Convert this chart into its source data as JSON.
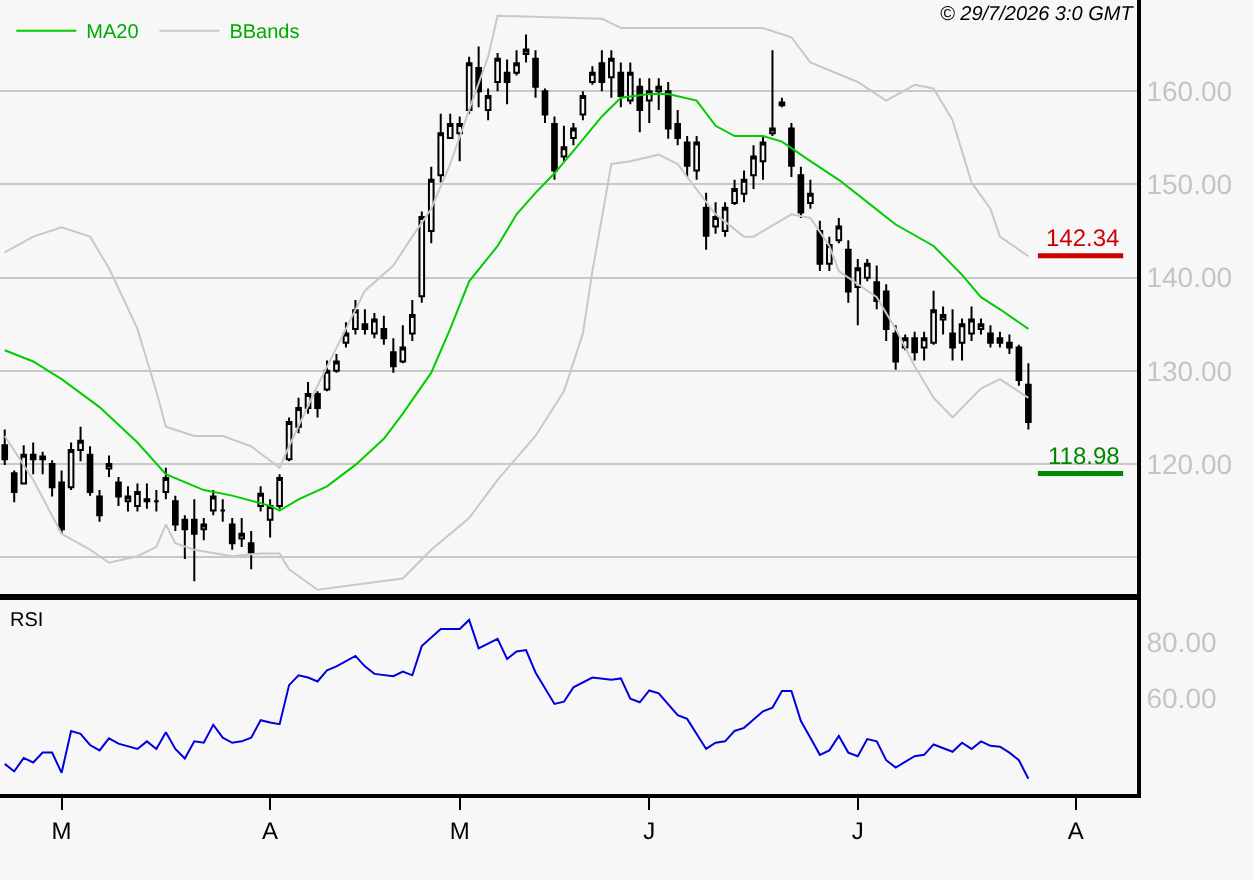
{
  "chart_data": [
    {
      "type": "candlestick",
      "categories": [
        null,
        null,
        null,
        null,
        null,
        null,
        null,
        null,
        null,
        null,
        null,
        null,
        null,
        null,
        null,
        null,
        null,
        null,
        null,
        null,
        null,
        null,
        null,
        null,
        null,
        null,
        null,
        null,
        null,
        null,
        null,
        null,
        null,
        null,
        null,
        null,
        null,
        null,
        null,
        null,
        null,
        null,
        null,
        null,
        null,
        null,
        null,
        null,
        null,
        null,
        null,
        null,
        null,
        null,
        null,
        null,
        null,
        null,
        null,
        null,
        null,
        null,
        null,
        null,
        null,
        null,
        null,
        null,
        null,
        null,
        null,
        null,
        null,
        null,
        null,
        null,
        null,
        null,
        null,
        null,
        null,
        null,
        null,
        null,
        null,
        null,
        null,
        null,
        null,
        null,
        null,
        null,
        null,
        null,
        null,
        null,
        null,
        null,
        null,
        null,
        null,
        null,
        null,
        null,
        null,
        null,
        null,
        null,
        null,
        null,
        null,
        null,
        null,
        null,
        null,
        null,
        null,
        null,
        null,
        null
      ],
      "ohlc": [
        [
          122.0,
          123.7,
          119.9,
          120.5
        ],
        [
          119.0,
          119.3,
          115.9,
          117.0
        ],
        [
          117.9,
          122.0,
          117.9,
          121.0
        ],
        [
          121.0,
          122.3,
          118.9,
          120.5
        ],
        [
          120.5,
          121.3,
          118.9,
          120.8
        ],
        [
          120.0,
          120.4,
          116.5,
          117.5
        ],
        [
          118.0,
          119.3,
          112.5,
          113.0
        ],
        [
          117.5,
          122.3,
          117.2,
          121.5
        ],
        [
          121.5,
          124.0,
          120.3,
          122.5
        ],
        [
          121.0,
          121.9,
          116.6,
          117.0
        ],
        [
          116.5,
          117.2,
          113.8,
          114.5
        ],
        [
          119.5,
          120.9,
          118.6,
          120.0
        ],
        [
          118.0,
          118.6,
          115.5,
          116.5
        ],
        [
          116.0,
          117.6,
          114.9,
          116.5
        ],
        [
          115.5,
          117.9,
          114.9,
          117.0
        ],
        [
          116.0,
          117.9,
          115.2,
          116.2
        ],
        [
          116.0,
          117.2,
          114.9,
          116.0
        ],
        [
          117.0,
          119.6,
          116.2,
          118.5
        ],
        [
          116.0,
          116.6,
          112.8,
          113.5
        ],
        [
          114.0,
          114.5,
          109.8,
          113.0
        ],
        [
          114.0,
          116.2,
          107.4,
          112.5
        ],
        [
          113.0,
          114.2,
          111.8,
          113.5
        ],
        [
          115.0,
          117.2,
          114.5,
          116.5
        ],
        [
          115.0,
          116.2,
          113.8,
          115.0
        ],
        [
          113.5,
          114.2,
          110.8,
          111.5
        ],
        [
          112.0,
          114.2,
          111.1,
          112.5
        ],
        [
          111.5,
          112.8,
          108.7,
          110.5
        ],
        [
          115.5,
          117.6,
          114.9,
          116.8
        ],
        [
          114.0,
          116.2,
          112.1,
          115.5
        ],
        [
          115.5,
          118.9,
          115.2,
          118.5
        ],
        [
          120.5,
          125.0,
          120.3,
          124.5
        ],
        [
          124.0,
          127.1,
          123.3,
          126.0
        ],
        [
          126.0,
          128.8,
          125.4,
          127.5
        ],
        [
          127.5,
          127.8,
          125.0,
          126.0
        ],
        [
          128.0,
          131.1,
          127.8,
          130.0
        ],
        [
          130.0,
          131.8,
          129.8,
          131.0
        ],
        [
          133.0,
          135.2,
          132.5,
          134.0
        ],
        [
          134.5,
          137.6,
          133.9,
          136.5
        ],
        [
          135.0,
          136.6,
          133.9,
          134.5
        ],
        [
          134.0,
          136.2,
          133.5,
          135.5
        ],
        [
          134.5,
          135.9,
          132.8,
          133.5
        ],
        [
          132.0,
          133.5,
          129.8,
          130.5
        ],
        [
          131.0,
          134.9,
          130.8,
          132.5
        ],
        [
          134.0,
          137.6,
          133.2,
          136.0
        ],
        [
          138.0,
          147.1,
          137.3,
          146.5
        ],
        [
          145.0,
          151.9,
          143.7,
          150.5
        ],
        [
          151.0,
          157.6,
          150.2,
          155.5
        ],
        [
          155.0,
          157.6,
          154.9,
          156.5
        ],
        [
          155.5,
          157.3,
          152.5,
          156.5
        ],
        [
          158.0,
          163.7,
          157.6,
          163.0
        ],
        [
          162.5,
          164.8,
          158.3,
          160.0
        ],
        [
          158.0,
          160.3,
          156.9,
          159.5
        ],
        [
          161.0,
          164.1,
          160.0,
          163.5
        ],
        [
          162.0,
          163.4,
          158.6,
          161.0
        ],
        [
          162.0,
          164.4,
          161.7,
          163.0
        ],
        [
          164.0,
          166.1,
          163.1,
          164.5
        ],
        [
          163.5,
          164.4,
          159.3,
          160.5
        ],
        [
          160.0,
          160.3,
          156.6,
          157.5
        ],
        [
          156.5,
          157.3,
          150.5,
          151.5
        ],
        [
          153.0,
          156.3,
          152.5,
          154.0
        ],
        [
          155.0,
          156.6,
          154.2,
          156.0
        ],
        [
          157.5,
          160.0,
          156.9,
          159.5
        ],
        [
          161.0,
          162.7,
          160.7,
          162.0
        ],
        [
          163.0,
          164.4,
          160.0,
          161.0
        ],
        [
          161.5,
          164.4,
          159.3,
          163.5
        ],
        [
          162.0,
          163.1,
          158.3,
          159.5
        ],
        [
          159.0,
          163.1,
          158.6,
          162.0
        ],
        [
          160.5,
          161.4,
          155.6,
          158.0
        ],
        [
          159.0,
          161.4,
          156.6,
          160.0
        ],
        [
          160.0,
          161.4,
          158.0,
          160.5
        ],
        [
          160.0,
          161.0,
          154.9,
          156.0
        ],
        [
          156.5,
          158.0,
          154.2,
          155.0
        ],
        [
          154.5,
          155.2,
          150.8,
          152.0
        ],
        [
          151.5,
          155.2,
          150.5,
          154.5
        ],
        [
          147.5,
          149.1,
          143.0,
          144.5
        ],
        [
          145.5,
          148.1,
          144.7,
          146.5
        ],
        [
          145.0,
          148.1,
          144.4,
          147.5
        ],
        [
          148.0,
          150.5,
          147.8,
          149.5
        ],
        [
          149.0,
          151.5,
          148.1,
          150.5
        ],
        [
          151.0,
          154.2,
          149.5,
          153.0
        ],
        [
          152.5,
          155.2,
          150.5,
          154.5
        ],
        [
          155.5,
          164.4,
          155.2,
          156.0
        ],
        [
          158.5,
          159.3,
          158.3,
          158.8
        ],
        [
          156.0,
          156.6,
          150.8,
          152.0
        ],
        [
          151.0,
          151.9,
          146.4,
          147.0
        ],
        [
          148.0,
          150.5,
          147.4,
          149.0
        ],
        [
          145.0,
          146.1,
          140.7,
          141.5
        ],
        [
          141.5,
          144.4,
          140.7,
          143.5
        ],
        [
          144.0,
          146.4,
          143.7,
          145.5
        ],
        [
          143.0,
          144.0,
          137.3,
          138.5
        ],
        [
          139.0,
          142.0,
          134.9,
          141.0
        ],
        [
          140.0,
          142.0,
          139.6,
          141.5
        ],
        [
          139.5,
          141.3,
          136.6,
          137.5
        ],
        [
          138.5,
          139.3,
          133.2,
          134.5
        ],
        [
          134.0,
          134.9,
          130.1,
          131.0
        ],
        [
          132.5,
          133.9,
          132.2,
          133.5
        ],
        [
          133.5,
          134.2,
          131.1,
          132.0
        ],
        [
          132.5,
          134.2,
          131.1,
          133.5
        ],
        [
          133.0,
          138.6,
          132.8,
          136.5
        ],
        [
          135.5,
          136.9,
          133.9,
          136.0
        ],
        [
          134.0,
          136.6,
          131.1,
          132.5
        ],
        [
          133.0,
          135.6,
          131.1,
          135.0
        ],
        [
          134.0,
          136.9,
          133.2,
          135.5
        ],
        [
          134.5,
          135.6,
          133.9,
          135.0
        ],
        [
          134.0,
          134.9,
          132.5,
          133.0
        ],
        [
          133.5,
          134.2,
          132.5,
          133.0
        ],
        [
          133.0,
          133.9,
          131.8,
          132.5
        ],
        [
          132.5,
          132.8,
          128.4,
          129.0
        ],
        [
          128.5,
          130.8,
          123.7,
          124.5
        ],
        null,
        null,
        null,
        null,
        null,
        null,
        null,
        null,
        null,
        null,
        null
      ],
      "series": [
        {
          "type": "line",
          "name": "MA20",
          "color": "#00cc00",
          "values": [
            132.2,
            null,
            null,
            131.0,
            null,
            null,
            129.1,
            null,
            null,
            null,
            126.1,
            null,
            null,
            null,
            122.3,
            null,
            null,
            118.9,
            null,
            null,
            null,
            117.2,
            null,
            null,
            116.6,
            null,
            null,
            null,
            115.5,
            115.0,
            null,
            116.2,
            null,
            null,
            117.6,
            null,
            null,
            119.9,
            null,
            null,
            122.7,
            null,
            125.4,
            null,
            null,
            129.8,
            null,
            134.5,
            null,
            139.6,
            null,
            null,
            143.4,
            null,
            146.8,
            null,
            149.1,
            null,
            151.2,
            null,
            153.6,
            null,
            null,
            157.3,
            null,
            159.3,
            null,
            null,
            159.7,
            null,
            159.7,
            null,
            null,
            159.0,
            null,
            156.3,
            null,
            155.2,
            null,
            null,
            155.2,
            null,
            154.6,
            null,
            null,
            152.5,
            null,
            null,
            150.5,
            null,
            null,
            148.1,
            null,
            null,
            145.7,
            null,
            null,
            null,
            143.4,
            null,
            null,
            140.3,
            null,
            137.9,
            null,
            136.6,
            null,
            null,
            134.5,
            null,
            null,
            null,
            null,
            null,
            null,
            null,
            null,
            null,
            null,
            null
          ]
        },
        {
          "type": "line",
          "name": "BBands",
          "color": "#c8c8c8",
          "values": [
            142.7,
            null,
            null,
            144.4,
            null,
            null,
            145.4,
            null,
            null,
            144.4,
            null,
            141.0,
            null,
            null,
            134.5,
            null,
            127.8,
            124.0,
            null,
            null,
            123.0,
            null,
            null,
            123.0,
            null,
            null,
            121.9,
            null,
            null,
            119.6,
            121.9,
            null,
            null,
            128.4,
            null,
            null,
            134.5,
            null,
            138.6,
            null,
            null,
            141.3,
            null,
            144.4,
            null,
            147.4,
            null,
            152.2,
            null,
            158.0,
            null,
            163.7,
            168.1,
            null,
            null,
            null,
            null,
            null,
            null,
            null,
            null,
            null,
            null,
            167.8,
            null,
            166.8,
            null,
            null,
            null,
            166.8,
            null,
            null,
            null,
            166.8,
            null,
            null,
            null,
            null,
            null,
            null,
            166.8,
            null,
            null,
            165.8,
            null,
            163.1,
            null,
            null,
            null,
            null,
            161.0,
            null,
            null,
            159.0,
            null,
            null,
            160.7,
            null,
            160.3,
            null,
            156.9,
            null,
            150.2,
            null,
            147.4,
            144.4,
            null,
            null,
            142.3,
            null,
            null,
            null,
            null,
            null,
            null,
            null,
            null,
            null,
            null,
            null
          ]
        },
        {
          "type": "line",
          "color": "#c8c8c8",
          "values": [
            123.0,
            null,
            null,
            118.3,
            null,
            null,
            112.5,
            null,
            null,
            110.8,
            null,
            109.4,
            null,
            null,
            110.1,
            null,
            111.1,
            113.5,
            111.5,
            null,
            110.8,
            null,
            null,
            null,
            110.1,
            null,
            null,
            110.4,
            null,
            110.4,
            108.7,
            null,
            null,
            106.5,
            null,
            null,
            null,
            null,
            null,
            null,
            null,
            null,
            107.7,
            null,
            null,
            110.8,
            null,
            null,
            null,
            114.2,
            null,
            null,
            118.3,
            null,
            null,
            null,
            123.0,
            null,
            null,
            127.8,
            null,
            134.0,
            140.7,
            146.4,
            152.2,
            null,
            152.5,
            null,
            null,
            153.2,
            null,
            152.2,
            150.8,
            null,
            null,
            146.8,
            null,
            null,
            144.4,
            144.4,
            null,
            null,
            null,
            146.8,
            null,
            146.4,
            null,
            143.4,
            140.7,
            null,
            null,
            null,
            137.9,
            null,
            134.5,
            null,
            130.5,
            null,
            127.1,
            null,
            125.0,
            null,
            null,
            128.1,
            null,
            129.1,
            null,
            null,
            127.1,
            null,
            null,
            null,
            null,
            null,
            null,
            null,
            null,
            null,
            null,
            null
          ]
        }
      ],
      "ylim": [
        106.0,
        169.8
      ],
      "yticks": [
        {
          "value": 110,
          "label": null
        },
        {
          "value": 120,
          "label": "120.00"
        },
        {
          "value": 130,
          "label": "130.00"
        },
        {
          "value": 140,
          "label": "140.00"
        },
        {
          "value": 150,
          "label": "150.00"
        },
        {
          "value": 160,
          "label": "160.00"
        }
      ],
      "grid": "y",
      "legend": "top left",
      "tick_labels": "y",
      "ref_lines": [
        {
          "axis": "y",
          "value": 142.34,
          "label": "142.34",
          "color": "#cc0000"
        },
        {
          "axis": "y",
          "value": 118.98,
          "label": "118.98",
          "color": "#008800"
        }
      ],
      "annotations": [
        "© 29/7/2026 3:0 GMT"
      ]
    },
    {
      "type": "line",
      "title": "RSI",
      "categories": [
        null,
        null,
        null,
        null,
        null,
        null,
        "M",
        null,
        null,
        null,
        null,
        null,
        null,
        null,
        null,
        null,
        null,
        null,
        null,
        null,
        null,
        null,
        null,
        null,
        null,
        null,
        null,
        null,
        "A",
        null,
        null,
        null,
        null,
        null,
        null,
        null,
        null,
        null,
        null,
        null,
        null,
        null,
        null,
        null,
        null,
        null,
        null,
        null,
        "M",
        null,
        null,
        null,
        null,
        null,
        null,
        null,
        null,
        null,
        null,
        null,
        null,
        null,
        null,
        null,
        null,
        null,
        null,
        null,
        "J",
        null,
        null,
        null,
        null,
        null,
        null,
        null,
        null,
        null,
        null,
        null,
        null,
        null,
        null,
        null,
        null,
        null,
        null,
        null,
        null,
        null,
        "J",
        null,
        null,
        null,
        null,
        null,
        null,
        null,
        null,
        null,
        null,
        null,
        null,
        null,
        null,
        null,
        null,
        null,
        null,
        null,
        null,
        null,
        null,
        "A",
        null,
        null,
        null,
        null,
        null,
        null
      ],
      "series": [
        {
          "color": "#0000dd",
          "values": [
            36.8,
            34.1,
            38.9,
            37.3,
            40.8,
            40.8,
            33.6,
            48.5,
            47.5,
            43.5,
            41.6,
            45.9,
            44.0,
            null,
            42.1,
            44.8,
            42.1,
            48.0,
            42.1,
            38.7,
            44.8,
            44.3,
            50.7,
            46.1,
            44.3,
            44.8,
            46.1,
            52.3,
            51.5,
            50.9,
            64.8,
            68.3,
            67.5,
            66.1,
            70.1,
            71.5,
            null,
            75.2,
            71.5,
            68.8,
            null,
            68.0,
            69.6,
            68.3,
            78.7,
            null,
            84.8,
            null,
            84.8,
            88.0,
            77.9,
            null,
            81.3,
            74.1,
            76.8,
            77.3,
            69.3,
            null,
            58.1,
            58.9,
            64.0,
            null,
            67.5,
            null,
            66.7,
            67.2,
            60.0,
            58.7,
            62.9,
            61.9,
            null,
            54.1,
            52.8,
            null,
            42.1,
            44.3,
            44.8,
            48.5,
            49.6,
            null,
            55.5,
            56.8,
            62.7,
            62.7,
            52.0,
            46.1,
            40.0,
            41.6,
            46.7,
            40.8,
            39.5,
            45.6,
            44.8,
            38.1,
            35.5,
            null,
            39.5,
            40.0,
            43.7,
            null,
            41.1,
            44.3,
            42.1,
            44.8,
            43.2,
            42.9,
            40.8,
            38.1,
            31.5,
            null,
            null,
            null,
            null,
            null,
            null,
            null,
            null,
            null,
            null,
            null
          ]
        }
      ],
      "ylim": [
        26,
        95
      ],
      "yticks": [
        {
          "value": 60,
          "label": "60.00"
        },
        {
          "value": 80,
          "label": "80.00"
        }
      ]
    }
  ]
}
